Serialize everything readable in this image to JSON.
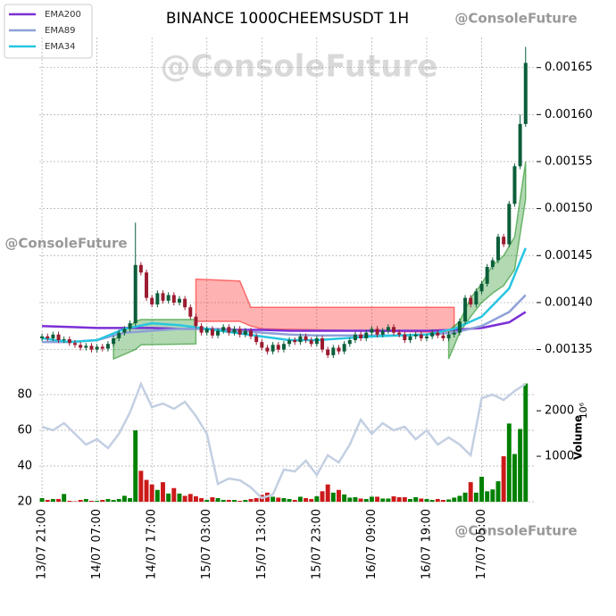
{
  "chart_data": {
    "type": "candlestick",
    "title": "BINANCE 1000CHEEMSUSDT 1H",
    "annotations": [
      "@ConsoleFuture",
      "@ConsoleFuture",
      "@ConsoleFuture",
      "@ConsoleFuture"
    ],
    "y2_label": "Volume",
    "y2_scale": "10⁶",
    "up_color": "#0b5e3a",
    "down_color": "#9b1b30",
    "grid": true,
    "legend": "upper left",
    "xlim": [
      -0.5,
      89.5
    ],
    "xticks": [
      {
        "value": 0,
        "label": "13/07 21:00"
      },
      {
        "value": 10,
        "label": "14/07 07:00"
      },
      {
        "value": 20,
        "label": "14/07 17:00"
      },
      {
        "value": 30,
        "label": "15/07 03:00"
      },
      {
        "value": 40,
        "label": "15/07 13:00"
      },
      {
        "value": 50,
        "label": "15/07 23:00"
      },
      {
        "value": 60,
        "label": "16/07 09:00"
      },
      {
        "value": 70,
        "label": "16/07 19:00"
      },
      {
        "value": 80,
        "label": "17/07 05:00"
      }
    ],
    "ylim": [
      0.001323,
      0.001682
    ],
    "yticks": [
      0.00135,
      {
        "value": 0.0014,
        "label": "0.00140"
      },
      0.00145,
      {
        "value": 0.0015,
        "label": "0.00150"
      },
      0.00155,
      {
        "value": 0.0016,
        "label": "0.00160"
      },
      0.00165
    ],
    "x": [
      0,
      1,
      2,
      3,
      4,
      5,
      6,
      7,
      8,
      9,
      10,
      11,
      12,
      13,
      14,
      15,
      16,
      17,
      18,
      19,
      20,
      21,
      22,
      23,
      24,
      25,
      26,
      27,
      28,
      29,
      30,
      31,
      32,
      33,
      34,
      35,
      36,
      37,
      38,
      39,
      40,
      41,
      42,
      43,
      44,
      45,
      46,
      47,
      48,
      49,
      50,
      51,
      52,
      53,
      54,
      55,
      56,
      57,
      58,
      59,
      60,
      61,
      62,
      63,
      64,
      65,
      66,
      67,
      68,
      69,
      70,
      71,
      72,
      73,
      74,
      75,
      76,
      77,
      78,
      79,
      80,
      81,
      82,
      83,
      84,
      85,
      86,
      87,
      88
    ],
    "open": [
      0.001362,
      0.001364,
      0.001362,
      0.001366,
      0.00136,
      0.001361,
      0.001357,
      0.001355,
      0.001352,
      0.001354,
      0.00135,
      0.001353,
      0.001351,
      0.001356,
      0.001362,
      0.001368,
      0.001372,
      0.001378,
      0.00144,
      0.001432,
      0.001405,
      0.001398,
      0.00141,
      0.001402,
      0.001408,
      0.0014,
      0.001404,
      0.001395,
      0.001385,
      0.001375,
      0.001368,
      0.001372,
      0.001365,
      0.00137,
      0.001374,
      0.001368,
      0.001372,
      0.001366,
      0.00137,
      0.001364,
      0.001358,
      0.001352,
      0.001348,
      0.001355,
      0.00135,
      0.001356,
      0.00136,
      0.001358,
      0.001364,
      0.00136,
      0.001356,
      0.001362,
      0.00135,
      0.001344,
      0.001352,
      0.001348,
      0.001356,
      0.00136,
      0.001366,
      0.001362,
      0.001368,
      0.001372,
      0.001366,
      0.00137,
      0.001374,
      0.001368,
      0.001366,
      0.00136,
      0.001364,
      0.001366,
      0.001362,
      0.001364,
      0.001368,
      0.001365,
      0.001362,
      0.001366,
      0.001368,
      0.00138,
      0.001405,
      0.001398,
      0.001412,
      0.00142,
      0.001438,
      0.001445,
      0.00147,
      0.001462,
      0.001505,
      0.001545,
      0.00159
    ],
    "high": [
      0.001367,
      0.001367,
      0.001369,
      0.001369,
      0.001364,
      0.001364,
      0.00136,
      0.001358,
      0.001357,
      0.001357,
      0.001356,
      0.001356,
      0.001359,
      0.001365,
      0.001371,
      0.001375,
      0.001381,
      0.001485,
      0.001443,
      0.001435,
      0.001408,
      0.001413,
      0.001413,
      0.001411,
      0.001411,
      0.001407,
      0.001407,
      0.001398,
      0.001388,
      0.001378,
      0.001375,
      0.001375,
      0.001373,
      0.001377,
      0.001377,
      0.001375,
      0.001375,
      0.001373,
      0.001373,
      0.001367,
      0.001361,
      0.001355,
      0.001358,
      0.001358,
      0.001359,
      0.001363,
      0.001363,
      0.001367,
      0.001367,
      0.001363,
      0.001365,
      0.001365,
      0.001353,
      0.001355,
      0.001355,
      0.001359,
      0.001363,
      0.001369,
      0.001369,
      0.001371,
      0.001375,
      0.001375,
      0.001373,
      0.001377,
      0.001377,
      0.001371,
      0.001369,
      0.001367,
      0.001369,
      0.001369,
      0.001367,
      0.001371,
      0.001371,
      0.001368,
      0.001369,
      0.001371,
      0.001383,
      0.001408,
      0.001408,
      0.001415,
      0.001423,
      0.001441,
      0.001448,
      0.001473,
      0.001473,
      0.001508,
      0.001548,
      0.0016,
      0.001672
    ],
    "low": [
      0.001359,
      0.001359,
      0.001359,
      0.001357,
      0.001357,
      0.001354,
      0.001352,
      0.001349,
      0.001349,
      0.001347,
      0.001347,
      0.001348,
      0.001348,
      0.001353,
      0.001359,
      0.001365,
      0.001369,
      0.001375,
      0.001429,
      0.001402,
      0.001395,
      0.001395,
      0.001399,
      0.001399,
      0.001397,
      0.001397,
      0.001392,
      0.001382,
      0.001372,
      0.001365,
      0.001365,
      0.001362,
      0.001362,
      0.001367,
      0.001365,
      0.001365,
      0.001363,
      0.001363,
      0.001361,
      0.001355,
      0.001349,
      0.001345,
      0.001345,
      0.001347,
      0.001347,
      0.001353,
      0.001355,
      0.001355,
      0.001357,
      0.001353,
      0.001353,
      0.001347,
      0.001341,
      0.001341,
      0.001345,
      0.001345,
      0.001353,
      0.001357,
      0.001359,
      0.001359,
      0.001365,
      0.001363,
      0.001363,
      0.001367,
      0.001365,
      0.001363,
      0.001357,
      0.001357,
      0.001361,
      0.001359,
      0.001359,
      0.001361,
      0.001362,
      0.001359,
      0.001359,
      0.001363,
      0.001365,
      0.001377,
      0.001395,
      0.001395,
      0.001409,
      0.001417,
      0.001435,
      0.001442,
      0.001459,
      0.001459,
      0.001502,
      0.001542,
      0.001587
    ],
    "close": [
      0.001364,
      0.001362,
      0.001366,
      0.00136,
      0.001361,
      0.001357,
      0.001355,
      0.001352,
      0.001354,
      0.00135,
      0.001353,
      0.001351,
      0.001356,
      0.001362,
      0.001368,
      0.001372,
      0.001378,
      0.00144,
      0.001432,
      0.001405,
      0.001398,
      0.00141,
      0.001402,
      0.001408,
      0.0014,
      0.001404,
      0.001395,
      0.001385,
      0.001375,
      0.001368,
      0.001372,
      0.001365,
      0.00137,
      0.001374,
      0.001368,
      0.001372,
      0.001366,
      0.00137,
      0.001364,
      0.001358,
      0.001352,
      0.001348,
      0.001355,
      0.00135,
      0.001356,
      0.00136,
      0.001358,
      0.001364,
      0.00136,
      0.001356,
      0.001362,
      0.00135,
      0.001344,
      0.001352,
      0.001348,
      0.001356,
      0.00136,
      0.001366,
      0.001362,
      0.001368,
      0.001372,
      0.001366,
      0.00137,
      0.001374,
      0.001368,
      0.001366,
      0.00136,
      0.001364,
      0.001366,
      0.001362,
      0.001364,
      0.001368,
      0.001365,
      0.001362,
      0.001366,
      0.001368,
      0.00138,
      0.001405,
      0.001398,
      0.001412,
      0.00142,
      0.001438,
      0.001445,
      0.00147,
      0.001462,
      0.001505,
      0.001545,
      0.00159,
      0.001655
    ],
    "series": [
      {
        "name": "EMA200",
        "color": "#7b2fd6",
        "x": [
          0,
          5,
          10,
          15,
          20,
          25,
          30,
          35,
          40,
          45,
          50,
          55,
          60,
          65,
          70,
          75,
          80,
          85,
          88
        ],
        "values": [
          0.001375,
          0.001374,
          0.001373,
          0.001373,
          0.001373,
          0.001372,
          0.001372,
          0.001371,
          0.001371,
          0.00137,
          0.00137,
          0.00137,
          0.00137,
          0.00137,
          0.00137,
          0.001371,
          0.001373,
          0.001379,
          0.00139
        ]
      },
      {
        "name": "EMA89",
        "color": "#8ea0d8",
        "x": [
          0,
          5,
          10,
          15,
          20,
          25,
          30,
          35,
          40,
          45,
          50,
          55,
          60,
          65,
          70,
          75,
          80,
          85,
          88
        ],
        "values": [
          0.001358,
          0.001358,
          0.00136,
          0.001368,
          0.00137,
          0.001372,
          0.001372,
          0.00137,
          0.001368,
          0.001366,
          0.001365,
          0.001365,
          0.001365,
          0.001365,
          0.001366,
          0.001368,
          0.001375,
          0.00139,
          0.001408
        ]
      },
      {
        "name": "EMA34",
        "color": "#27c6e0",
        "x": [
          0,
          5,
          10,
          15,
          20,
          25,
          30,
          35,
          40,
          45,
          50,
          55,
          60,
          65,
          70,
          75,
          80,
          85,
          88
        ],
        "values": [
          0.001362,
          0.001358,
          0.00136,
          0.001372,
          0.001378,
          0.001376,
          0.001372,
          0.001368,
          0.001364,
          0.00136,
          0.00136,
          0.001362,
          0.001364,
          0.001365,
          0.001366,
          0.001372,
          0.001385,
          0.001415,
          0.001458
        ]
      }
    ],
    "clouds": [
      {
        "color": "#ff0000",
        "x": [
          28,
          32,
          36,
          38,
          40,
          75
        ],
        "upper": [
          0.001425,
          0.001424,
          0.001423,
          0.001395,
          0.001395,
          0.001395
        ],
        "lower": [
          0.00138,
          0.00138,
          0.00138,
          0.001375,
          0.001372,
          0.001368
        ]
      },
      {
        "color": "#008000",
        "x": [
          13,
          17,
          18,
          28
        ],
        "upper": [
          0.00136,
          0.00138,
          0.001382,
          0.001382
        ],
        "lower": [
          0.00134,
          0.00135,
          0.001355,
          0.001356
        ]
      },
      {
        "color": "#008000",
        "x": [
          74,
          76,
          78,
          80,
          82,
          84,
          86,
          88
        ],
        "upper": [
          0.00137,
          0.00138,
          0.001405,
          0.00142,
          0.00144,
          0.00145,
          0.00147,
          0.00155
        ],
        "lower": [
          0.00134,
          0.001368,
          0.001385,
          0.0014,
          0.00141,
          0.001418,
          0.001435,
          0.00151
        ]
      }
    ],
    "volume": {
      "up_color": "#008000",
      "down_color": "#cc1a1a",
      "values": [
        80,
        40,
        60,
        60,
        170,
        20,
        10,
        40,
        60,
        20,
        20,
        40,
        60,
        40,
        60,
        130,
        80,
        1570,
        680,
        480,
        380,
        260,
        430,
        180,
        300,
        180,
        130,
        170,
        120,
        80,
        40,
        100,
        80,
        40,
        40,
        40,
        20,
        40,
        60,
        80,
        150,
        200,
        110,
        90,
        80,
        60,
        40,
        110,
        80,
        60,
        120,
        230,
        380,
        200,
        260,
        160,
        90,
        100,
        70,
        60,
        110,
        110,
        70,
        70,
        120,
        100,
        100,
        60,
        100,
        70,
        60,
        40,
        60,
        40,
        50,
        90,
        130,
        200,
        430,
        200,
        550,
        230,
        270,
        450,
        1000,
        1720,
        1050,
        1600,
        2600
      ]
    },
    "y2lim": [
      0,
      2690
    ],
    "y2ticks": [
      1000,
      2000
    ],
    "oscillator": {
      "color": "#c3cfe2",
      "x": [
        0,
        2,
        4,
        6,
        8,
        10,
        12,
        14,
        16,
        18,
        20,
        22,
        24,
        26,
        28,
        30,
        32,
        34,
        36,
        38,
        40,
        42,
        44,
        46,
        48,
        50,
        52,
        54,
        56,
        58,
        60,
        62,
        64,
        66,
        68,
        70,
        72,
        74,
        76,
        78,
        80,
        82,
        84,
        86,
        88
      ],
      "values": [
        62,
        60,
        64,
        58,
        52,
        55,
        50,
        58,
        70,
        86,
        73,
        75,
        72,
        76,
        68,
        58,
        30,
        33,
        32,
        28,
        22,
        24,
        38,
        37,
        43,
        35,
        46,
        42,
        52,
        66,
        58,
        64,
        60,
        62,
        55,
        60,
        52,
        56,
        52,
        46,
        78,
        80,
        77,
        82,
        86
      ]
    },
    "y3lim": [
      20,
      88.5
    ],
    "y3ticks": [
      20,
      40,
      60,
      80
    ]
  }
}
